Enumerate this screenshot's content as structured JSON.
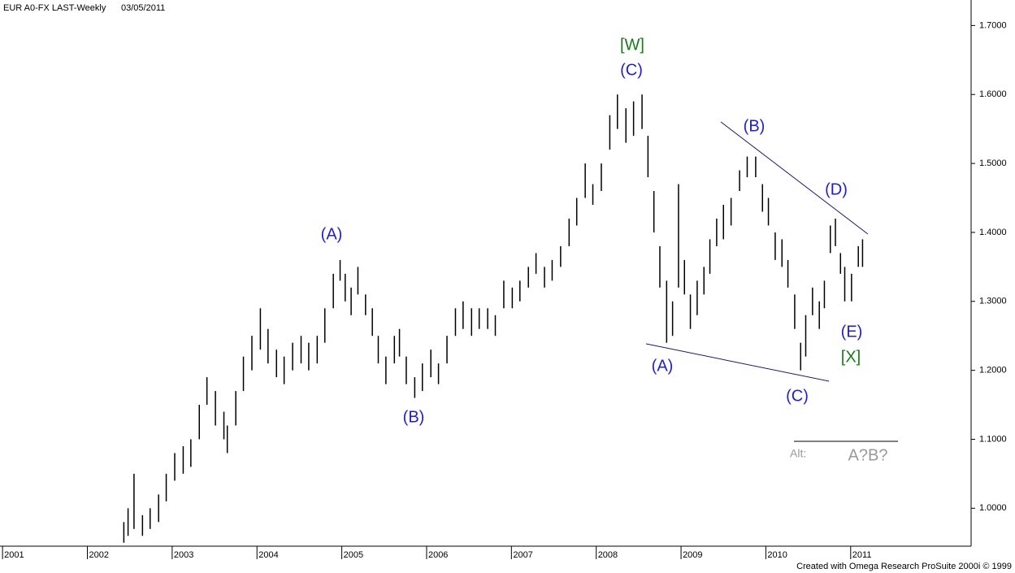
{
  "chart_data": {
    "type": "ohlc",
    "symbol": "EUR A0-FX LAST-Weekly",
    "date": "03/05/2011",
    "footer": "Created with Omega Research ProSuite 2000i © 1999",
    "color": "#000000",
    "x": [
      2002.43,
      2002.48,
      2002.55,
      2002.65,
      2002.74,
      2002.84,
      2002.93,
      2003.03,
      2003.13,
      2003.22,
      2003.32,
      2003.41,
      2003.51,
      2003.61,
      2003.65,
      2003.75,
      2003.84,
      2003.94,
      2004.04,
      2004.13,
      2004.23,
      2004.32,
      2004.42,
      2004.52,
      2004.61,
      2004.71,
      2004.8,
      2004.9,
      2004.98,
      2005.04,
      2005.11,
      2005.19,
      2005.28,
      2005.36,
      2005.43,
      2005.52,
      2005.62,
      2005.68,
      2005.76,
      2005.86,
      2005.95,
      2006.05,
      2006.14,
      2006.24,
      2006.34,
      2006.43,
      2006.53,
      2006.62,
      2006.72,
      2006.81,
      2006.91,
      2007.01,
      2007.1,
      2007.2,
      2007.29,
      2007.39,
      2007.48,
      2007.58,
      2007.68,
      2007.77,
      2007.87,
      2007.96,
      2008.06,
      2008.16,
      2008.25,
      2008.35,
      2008.44,
      2008.54,
      2008.61,
      2008.68,
      2008.75,
      2008.83,
      2008.9,
      2008.97,
      2009.04,
      2009.11,
      2009.19,
      2009.27,
      2009.34,
      2009.42,
      2009.5,
      2009.59,
      2009.69,
      2009.78,
      2009.88,
      2009.96,
      2010.03,
      2010.11,
      2010.19,
      2010.26,
      2010.34,
      2010.41,
      2010.47,
      2010.55,
      2010.63,
      2010.69,
      2010.76,
      2010.82,
      2010.88,
      2010.93,
      2011.01,
      2011.09,
      2011.14
    ],
    "series": [
      {
        "name": "high",
        "values": [
          0.98,
          1.0,
          1.05,
          0.99,
          1.0,
          1.02,
          1.05,
          1.08,
          1.09,
          1.1,
          1.15,
          1.19,
          1.17,
          1.14,
          1.12,
          1.17,
          1.22,
          1.25,
          1.29,
          1.26,
          1.23,
          1.22,
          1.24,
          1.25,
          1.24,
          1.25,
          1.29,
          1.34,
          1.36,
          1.34,
          1.32,
          1.35,
          1.31,
          1.29,
          1.25,
          1.22,
          1.25,
          1.26,
          1.22,
          1.19,
          1.21,
          1.23,
          1.21,
          1.25,
          1.29,
          1.3,
          1.29,
          1.29,
          1.29,
          1.28,
          1.33,
          1.32,
          1.33,
          1.35,
          1.37,
          1.35,
          1.36,
          1.38,
          1.42,
          1.45,
          1.5,
          1.47,
          1.5,
          1.57,
          1.6,
          1.58,
          1.59,
          1.6,
          1.54,
          1.46,
          1.38,
          1.33,
          1.3,
          1.47,
          1.36,
          1.31,
          1.33,
          1.35,
          1.39,
          1.42,
          1.44,
          1.45,
          1.49,
          1.51,
          1.51,
          1.47,
          1.45,
          1.4,
          1.39,
          1.36,
          1.31,
          1.24,
          1.28,
          1.32,
          1.3,
          1.33,
          1.41,
          1.42,
          1.37,
          1.35,
          1.34,
          1.38,
          1.39
        ]
      },
      {
        "name": "low",
        "values": [
          0.95,
          0.96,
          0.97,
          0.96,
          0.97,
          0.98,
          1.01,
          1.04,
          1.05,
          1.06,
          1.1,
          1.15,
          1.12,
          1.1,
          1.08,
          1.12,
          1.17,
          1.2,
          1.23,
          1.21,
          1.19,
          1.18,
          1.2,
          1.21,
          1.2,
          1.21,
          1.24,
          1.29,
          1.33,
          1.3,
          1.28,
          1.31,
          1.28,
          1.25,
          1.21,
          1.18,
          1.21,
          1.22,
          1.18,
          1.16,
          1.17,
          1.19,
          1.18,
          1.21,
          1.25,
          1.26,
          1.25,
          1.26,
          1.26,
          1.25,
          1.29,
          1.29,
          1.3,
          1.32,
          1.34,
          1.32,
          1.33,
          1.35,
          1.38,
          1.41,
          1.45,
          1.44,
          1.46,
          1.52,
          1.55,
          1.53,
          1.54,
          1.55,
          1.48,
          1.4,
          1.32,
          1.24,
          1.25,
          1.32,
          1.31,
          1.26,
          1.28,
          1.31,
          1.34,
          1.38,
          1.39,
          1.41,
          1.46,
          1.48,
          1.48,
          1.43,
          1.41,
          1.36,
          1.35,
          1.32,
          1.26,
          1.2,
          1.22,
          1.28,
          1.26,
          1.29,
          1.37,
          1.38,
          1.34,
          1.3,
          1.3,
          1.35,
          1.35
        ]
      }
    ],
    "xlim": [
      2000.97,
      2012.42
    ],
    "ylim": [
      0.945,
      1.737
    ],
    "xticks": [
      2001,
      2002,
      2003,
      2004,
      2005,
      2006,
      2007,
      2008,
      2009,
      2010,
      2011
    ],
    "yticks": [
      {
        "value": 1.0,
        "label": "1.0000"
      },
      {
        "value": 1.1,
        "label": "1.1000"
      },
      {
        "value": 1.2,
        "label": "1.2000"
      },
      {
        "value": 1.3,
        "label": "1.3000"
      },
      {
        "value": 1.4,
        "label": "1.4000"
      },
      {
        "value": 1.5,
        "label": "1.5000"
      },
      {
        "value": 1.6,
        "label": "1.6000"
      },
      {
        "value": 1.7,
        "label": "1.7000"
      }
    ],
    "annotations": [
      {
        "text": "[W]",
        "color": "#1a7a1a"
      },
      {
        "text": "(C)",
        "color": "#1f1fcc"
      },
      {
        "text": "(A)",
        "color": "#1f1fcc"
      },
      {
        "text": "(B)",
        "color": "#1f1fcc"
      },
      {
        "text": "(B)",
        "color": "#1f1fcc"
      },
      {
        "text": "(D)",
        "color": "#1f1fcc"
      },
      {
        "text": "(A)",
        "color": "#1f1fcc"
      },
      {
        "text": "(C)",
        "color": "#1f1fcc"
      },
      {
        "text": "(E)",
        "color": "#1f1fcc"
      },
      {
        "text": "[X]",
        "color": "#1a7a1a"
      }
    ],
    "alt_label": "Alt:",
    "alt_text": "A?B?"
  }
}
